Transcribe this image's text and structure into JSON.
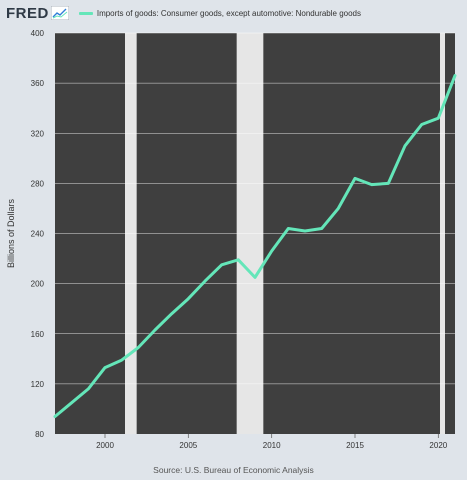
{
  "header": {
    "logo_text": "FRED",
    "logo_icon": "fred-chart-icon",
    "legend_label": "Imports of goods: Consumer goods, except automotive: Nondurable goods"
  },
  "source": "Source: U.S. Bureau of Economic Analysis",
  "colors": {
    "background": "#dfe4ea",
    "plot_background": "#3f3f3f",
    "recession_band": "#e6e6e6",
    "line": "#64e6b9",
    "gridline": "#ffffff"
  },
  "chart_data": {
    "type": "line",
    "title": "",
    "xlabel": "",
    "ylabel": "Billions of Dollars",
    "xlim": [
      1997,
      2021
    ],
    "ylim": [
      80,
      400
    ],
    "y_ticks": [
      80,
      120,
      160,
      200,
      240,
      280,
      320,
      360,
      400
    ],
    "x_ticks": [
      2000,
      2005,
      2010,
      2015,
      2020
    ],
    "grid": "horizontal",
    "legend_position": "top-left",
    "recessions": [
      {
        "start": 2001.2,
        "end": 2001.9
      },
      {
        "start": 2007.9,
        "end": 2009.5
      },
      {
        "start": 2020.1,
        "end": 2020.4
      }
    ],
    "series": [
      {
        "name": "Imports of goods: Consumer goods, except automotive: Nondurable goods",
        "x": [
          1997,
          1998,
          1999,
          2000,
          2001,
          2002,
          2003,
          2004,
          2005,
          2006,
          2007,
          2008,
          2009,
          2010,
          2011,
          2012,
          2013,
          2014,
          2015,
          2016,
          2017,
          2018,
          2019,
          2020,
          2021
        ],
        "values": [
          94,
          105,
          116,
          133,
          139,
          149,
          163,
          176,
          188,
          202,
          215,
          219,
          205,
          226,
          244,
          242,
          244,
          260,
          284,
          279,
          280,
          310,
          327,
          332,
          366
        ]
      }
    ]
  }
}
